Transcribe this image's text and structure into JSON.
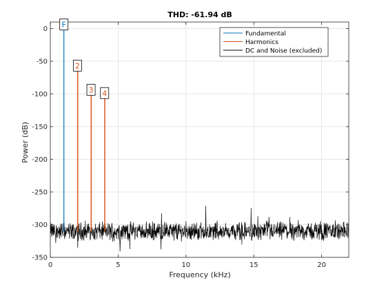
{
  "chart_data": {
    "type": "line",
    "title": "THD: -61.94 dB",
    "xlabel": "Frequency (kHz)",
    "ylabel": "Power (dB)",
    "xlim": [
      0,
      22
    ],
    "ylim": [
      -350,
      10
    ],
    "xticks": [
      0,
      5,
      10,
      15,
      20
    ],
    "yticks": [
      0,
      -50,
      -100,
      -150,
      -200,
      -250,
      -300,
      -350
    ],
    "grid": true,
    "legend_position": "top-right",
    "series": [
      {
        "name": "Fundamental",
        "color": "#0072BD",
        "x": [
          1,
          1
        ],
        "y": [
          -310,
          0
        ]
      },
      {
        "name": "Harmonics",
        "color": "#D95319",
        "x": [
          2,
          3,
          4
        ],
        "y": [
          -63,
          -100,
          -105
        ]
      },
      {
        "name": "DC and Noise (excluded)",
        "color": "#000000",
        "noise_level": -310,
        "x_range": [
          0,
          22
        ]
      }
    ],
    "annotations": [
      {
        "label": "F",
        "x": 1,
        "y": 0,
        "color": "#0072BD"
      },
      {
        "label": "2",
        "x": 2,
        "y": -63,
        "color": "#D95319"
      },
      {
        "label": "3",
        "x": 3,
        "y": -100,
        "color": "#D95319"
      },
      {
        "label": "4",
        "x": 4,
        "y": -105,
        "color": "#D95319"
      }
    ]
  }
}
